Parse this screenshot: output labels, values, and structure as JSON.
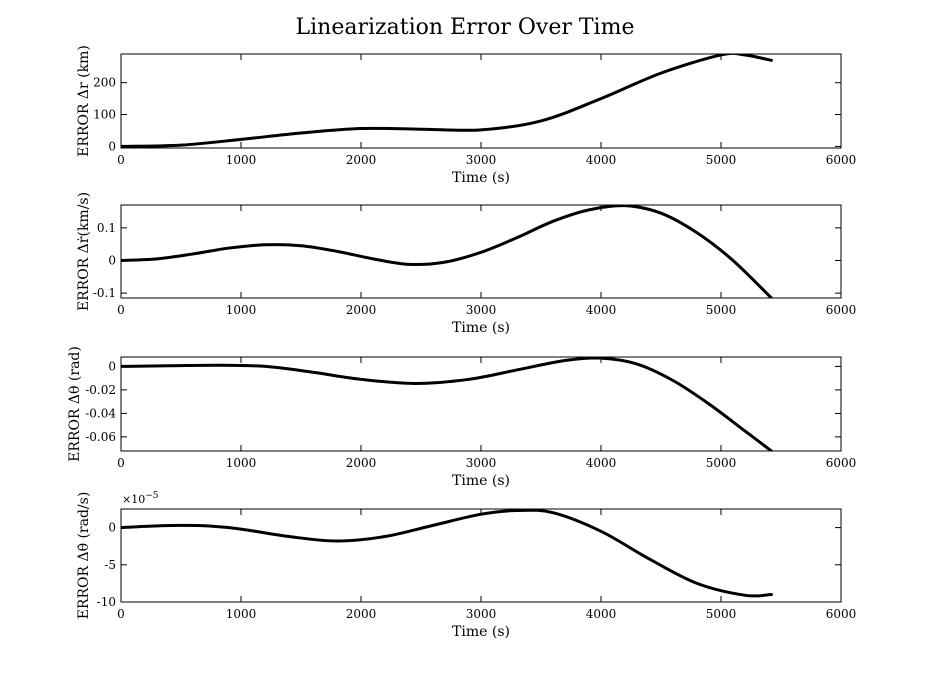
{
  "figure": {
    "title": "Linearization Error Over Time"
  },
  "chart_data": [
    {
      "type": "line",
      "ylabel": "ERROR Δr (km)",
      "xlabel": "Time (s)",
      "xlim": [
        0,
        6000
      ],
      "ylim": [
        -5,
        290
      ],
      "xticks": [
        0,
        1000,
        2000,
        3000,
        4000,
        5000,
        6000
      ],
      "xtick_labels": [
        "0",
        "1000",
        "2000",
        "3000",
        "4000",
        "5000",
        "6000"
      ],
      "yticks": [
        0,
        100,
        200
      ],
      "ytick_labels": [
        "0",
        "100",
        "200"
      ],
      "multiplier": "",
      "series": [
        {
          "x": [
            0,
            500,
            1000,
            1500,
            2000,
            2500,
            3000,
            3500,
            4000,
            4500,
            5000,
            5200,
            5420
          ],
          "y": [
            0,
            4,
            22,
            42,
            56,
            54,
            52,
            80,
            150,
            230,
            287,
            287,
            270
          ]
        }
      ]
    },
    {
      "type": "line",
      "ylabel": "ERROR Δṙ(km/s)",
      "xlabel": "Time (s)",
      "xlim": [
        0,
        6000
      ],
      "ylim": [
        -0.115,
        0.17
      ],
      "xticks": [
        0,
        1000,
        2000,
        3000,
        4000,
        5000,
        6000
      ],
      "xtick_labels": [
        "0",
        "1000",
        "2000",
        "3000",
        "4000",
        "5000",
        "6000"
      ],
      "yticks": [
        -0.1,
        0,
        0.1
      ],
      "ytick_labels": [
        "-0.1",
        "0",
        "0.1"
      ],
      "multiplier": "",
      "series": [
        {
          "x": [
            0,
            300,
            600,
            900,
            1200,
            1500,
            1800,
            2100,
            2400,
            2700,
            3000,
            3300,
            3600,
            3900,
            4200,
            4500,
            4800,
            5100,
            5420
          ],
          "y": [
            0,
            0.005,
            0.02,
            0.038,
            0.048,
            0.045,
            0.028,
            0.005,
            -0.012,
            -0.005,
            0.025,
            0.07,
            0.12,
            0.155,
            0.168,
            0.145,
            0.085,
            0.0,
            -0.115
          ]
        }
      ]
    },
    {
      "type": "line",
      "ylabel": "ERROR Δθ (rad)",
      "xlabel": "Time (s)",
      "xlim": [
        0,
        6000
      ],
      "ylim": [
        -0.072,
        0.008
      ],
      "xticks": [
        0,
        1000,
        2000,
        3000,
        4000,
        5000,
        6000
      ],
      "xtick_labels": [
        "0",
        "1000",
        "2000",
        "3000",
        "4000",
        "5000",
        "6000"
      ],
      "yticks": [
        -0.06,
        -0.04,
        -0.02,
        0
      ],
      "ytick_labels": [
        "-0.06",
        "-0.04",
        "-0.02",
        "0"
      ],
      "multiplier": "",
      "series": [
        {
          "x": [
            0,
            400,
            800,
            1200,
            1600,
            2000,
            2450,
            2900,
            3300,
            3700,
            4000,
            4300,
            4600,
            4900,
            5200,
            5420
          ],
          "y": [
            0,
            0.0005,
            0.001,
            0.0,
            -0.005,
            -0.011,
            -0.0145,
            -0.011,
            -0.003,
            0.005,
            0.007,
            0.002,
            -0.012,
            -0.032,
            -0.055,
            -0.072
          ]
        }
      ]
    },
    {
      "type": "line",
      "ylabel": "ERROR Δθ̇ (rad/s)",
      "xlabel": "Time (s)",
      "xlim": [
        0,
        6000
      ],
      "ylim": [
        -10,
        2.5
      ],
      "xticks": [
        0,
        1000,
        2000,
        3000,
        4000,
        5000,
        6000
      ],
      "xtick_labels": [
        "0",
        "1000",
        "2000",
        "3000",
        "4000",
        "5000",
        "6000"
      ],
      "yticks": [
        -10,
        -5,
        0
      ],
      "ytick_labels": [
        "-10",
        "-5",
        "0"
      ],
      "multiplier": "×10",
      "multiplier_exp": "−5",
      "series": [
        {
          "x": [
            0,
            250,
            500,
            750,
            1000,
            1400,
            1800,
            2200,
            2600,
            3000,
            3300,
            3600,
            4000,
            4400,
            4800,
            5200,
            5420
          ],
          "y": [
            0,
            0.2,
            0.3,
            0.2,
            -0.2,
            -1.2,
            -1.8,
            -1.2,
            0.3,
            1.8,
            2.3,
            2.0,
            -0.5,
            -4.2,
            -7.5,
            -9.1,
            -9.0
          ]
        }
      ]
    }
  ]
}
